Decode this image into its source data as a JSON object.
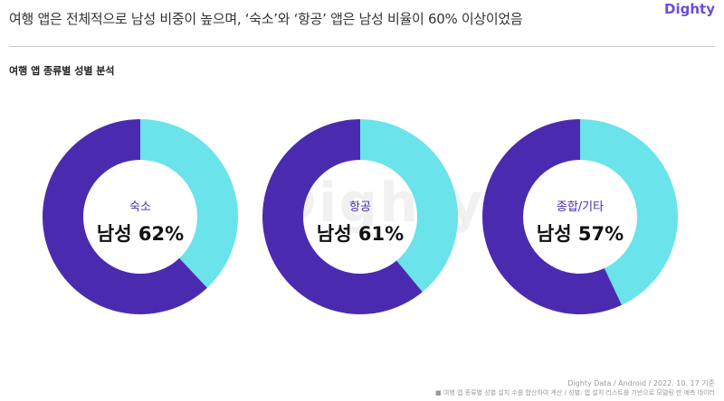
{
  "header": {
    "headline": "여행 앱은 전체적으로 남성 비중이 높으며, ‘숙소’와 ‘항공’ 앱은 남성 비율이 60% 이상이었음",
    "logo": "Dighty"
  },
  "subtitle": "여행 앱 종류별 성별 분석",
  "watermark": "Dighty",
  "colors": {
    "male": "#4a2bb0",
    "female": "#6ae3ea"
  },
  "chart_data": {
    "type": "pie",
    "categories": [
      "숙소",
      "항공",
      "종합/기타"
    ],
    "series": [
      {
        "values": [
          62,
          61,
          57
        ]
      },
      {
        "values": [
          38,
          39,
          43
        ]
      }
    ],
    "labels": [
      "남성 62%",
      "남성 61%",
      "남성 57%"
    ]
  },
  "footer": {
    "source": "Dighty Data / Android / 2022. 10. 17 기준",
    "note": "■ 여행 앱 종류별 성별 설치 수를 합산하여 계산 / 성별: 앱 설치 리스트를 기반으로 모델링 한 예측 데이터"
  }
}
